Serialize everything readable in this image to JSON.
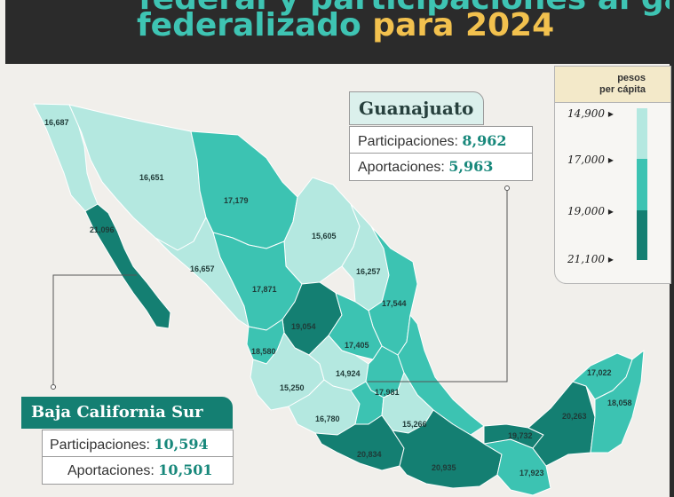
{
  "header": {
    "line1_text": "federal y participaciones al gasto",
    "line2_part1": "federalizado",
    "line2_part2": "para 2024"
  },
  "legend": {
    "title_line1": "pesos",
    "title_line2": "per cápita",
    "ticks": [
      "14,900",
      "17,000",
      "19,000",
      "21,100"
    ],
    "arrow": "▸",
    "colors": [
      "#b4e8e0",
      "#3cc3b2",
      "#147f72"
    ]
  },
  "callouts": {
    "guanajuato": {
      "name": "Guanajuato",
      "participaciones_label": "Participaciones:",
      "participaciones_value": "8,962",
      "aportaciones_label": "Aportaciones:",
      "aportaciones_value": "5,963"
    },
    "bcs": {
      "name": "Baja California Sur",
      "participaciones_label": "Participaciones:",
      "participaciones_value": "10,594",
      "aportaciones_label": "Aportaciones:",
      "aportaciones_value": "10,501"
    }
  },
  "states": {
    "baja_california": "16,687",
    "sonora": "16,651",
    "chihuahua": "17,179",
    "baja_california_sur": "21,096",
    "coahuila": "15,605",
    "sinaloa": "16,657",
    "durango": "17,871",
    "nuevo_leon": "16,257",
    "tamaulipas": "17,544",
    "zacatecas": "19,054",
    "nayarit": "18,580",
    "san_luis_potosi": "17,405",
    "jalisco": "15,250",
    "guanajuato": "14,924",
    "hidalgo": "17,981",
    "michoacan": "16,780",
    "puebla": "15,266",
    "guerrero": "20,834",
    "oaxaca": "20,935",
    "chiapas": "17,923",
    "tabasco": "19,732",
    "campeche": "20,263",
    "yucatan": "17,022",
    "quintana_roo": "18,058"
  },
  "colors": {
    "light": "#b4e8e0",
    "mid": "#3cc3b2",
    "dark": "#147f72",
    "darker": "#0f6f63",
    "accent_teal": "#3ec4b3",
    "accent_yellow": "#f2c14e"
  }
}
